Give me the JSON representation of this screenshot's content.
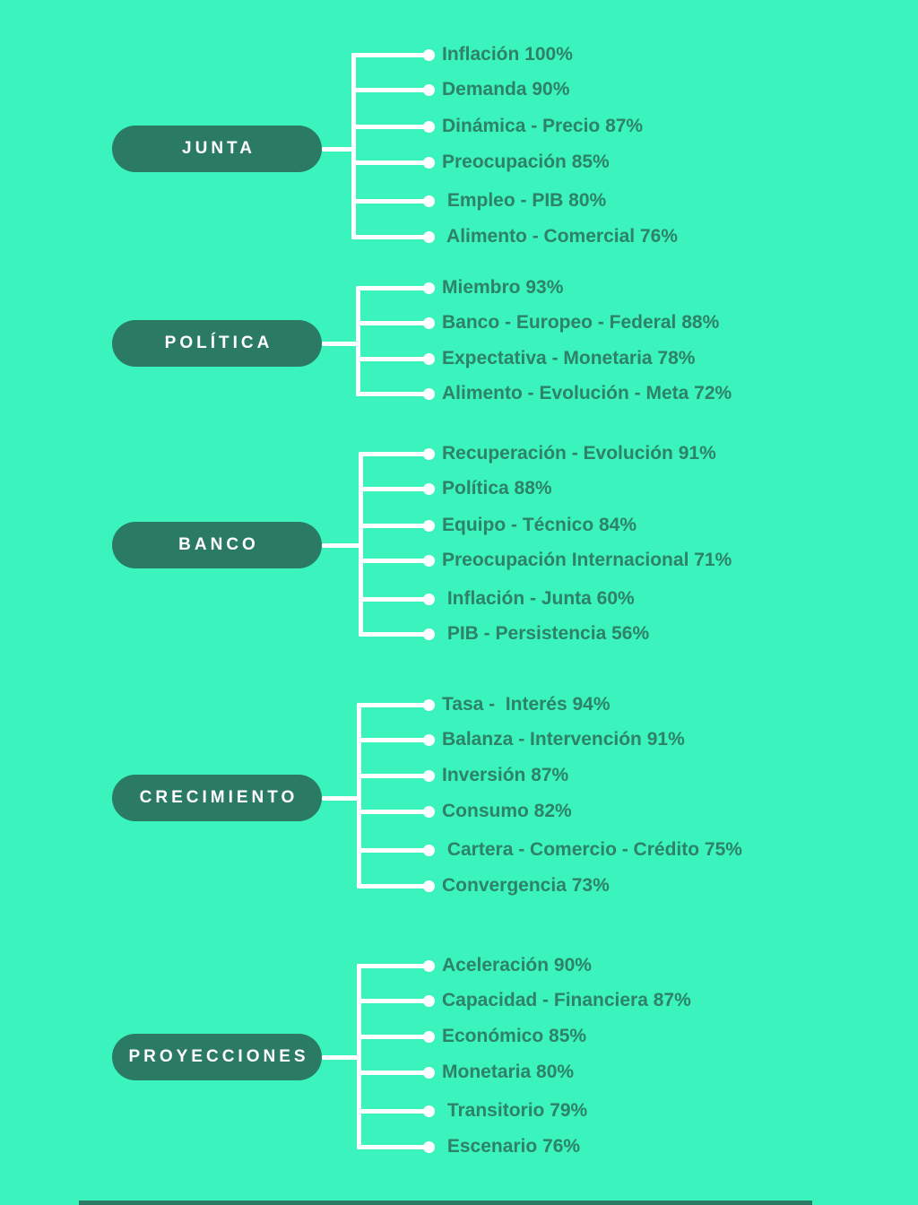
{
  "palette": {
    "background": "#3AF3BD",
    "node_fill": "#2B7B64",
    "node_text": "#FFFFFF",
    "item_text": "#2E8266",
    "connector": "#FFFFFF"
  },
  "sections": [
    {
      "label": "JUNTA",
      "items": [
        {
          "text": "Inflación 100%",
          "percent": 100
        },
        {
          "text": "Demanda 90%",
          "percent": 90
        },
        {
          "text": "Dinámica - Precio 87%",
          "percent": 87
        },
        {
          "text": "Preocupación 85%",
          "percent": 85
        },
        {
          "text": " Empleo - PIB 80%",
          "percent": 80
        },
        {
          "text": " Alimento - Comercial 76%",
          "percent": 76
        }
      ]
    },
    {
      "label": "POLÍTICA",
      "items": [
        {
          "text": "Miembro 93%",
          "percent": 93
        },
        {
          "text": "Banco - Europeo - Federal 88%",
          "percent": 88
        },
        {
          "text": "Expectativa - Monetaria 78%",
          "percent": 78
        },
        {
          "text": "Alimento - Evolución - Meta 72%",
          "percent": 72
        }
      ]
    },
    {
      "label": "BANCO",
      "items": [
        {
          "text": "Recuperación - Evolución 91%",
          "percent": 91
        },
        {
          "text": "Política 88%",
          "percent": 88
        },
        {
          "text": "Equipo - Técnico 84%",
          "percent": 84
        },
        {
          "text": "Preocupación Internacional 71%",
          "percent": 71
        },
        {
          "text": " Inflación - Junta 60%",
          "percent": 60
        },
        {
          "text": " PIB - Persistencia 56%",
          "percent": 56
        }
      ]
    },
    {
      "label": "CRECIMIENTO",
      "items": [
        {
          "text": "Tasa -  Interés 94%",
          "percent": 94
        },
        {
          "text": "Balanza - Intervención 91%",
          "percent": 91
        },
        {
          "text": "Inversión 87%",
          "percent": 87
        },
        {
          "text": "Consumo 82%",
          "percent": 82
        },
        {
          "text": " Cartera - Comercio - Crédito 75%",
          "percent": 75
        },
        {
          "text": "Convergencia 73%",
          "percent": 73
        }
      ]
    },
    {
      "label": "PROYECCIONES",
      "items": [
        {
          "text": "Aceleración 90%",
          "percent": 90
        },
        {
          "text": "Capacidad - Financiera 87%",
          "percent": 87
        },
        {
          "text": "Económico 85%",
          "percent": 85
        },
        {
          "text": "Monetaria 80%",
          "percent": 80
        },
        {
          "text": " Transitorio 79%",
          "percent": 79
        },
        {
          "text": " Escenario 76%",
          "percent": 76
        }
      ]
    }
  ]
}
